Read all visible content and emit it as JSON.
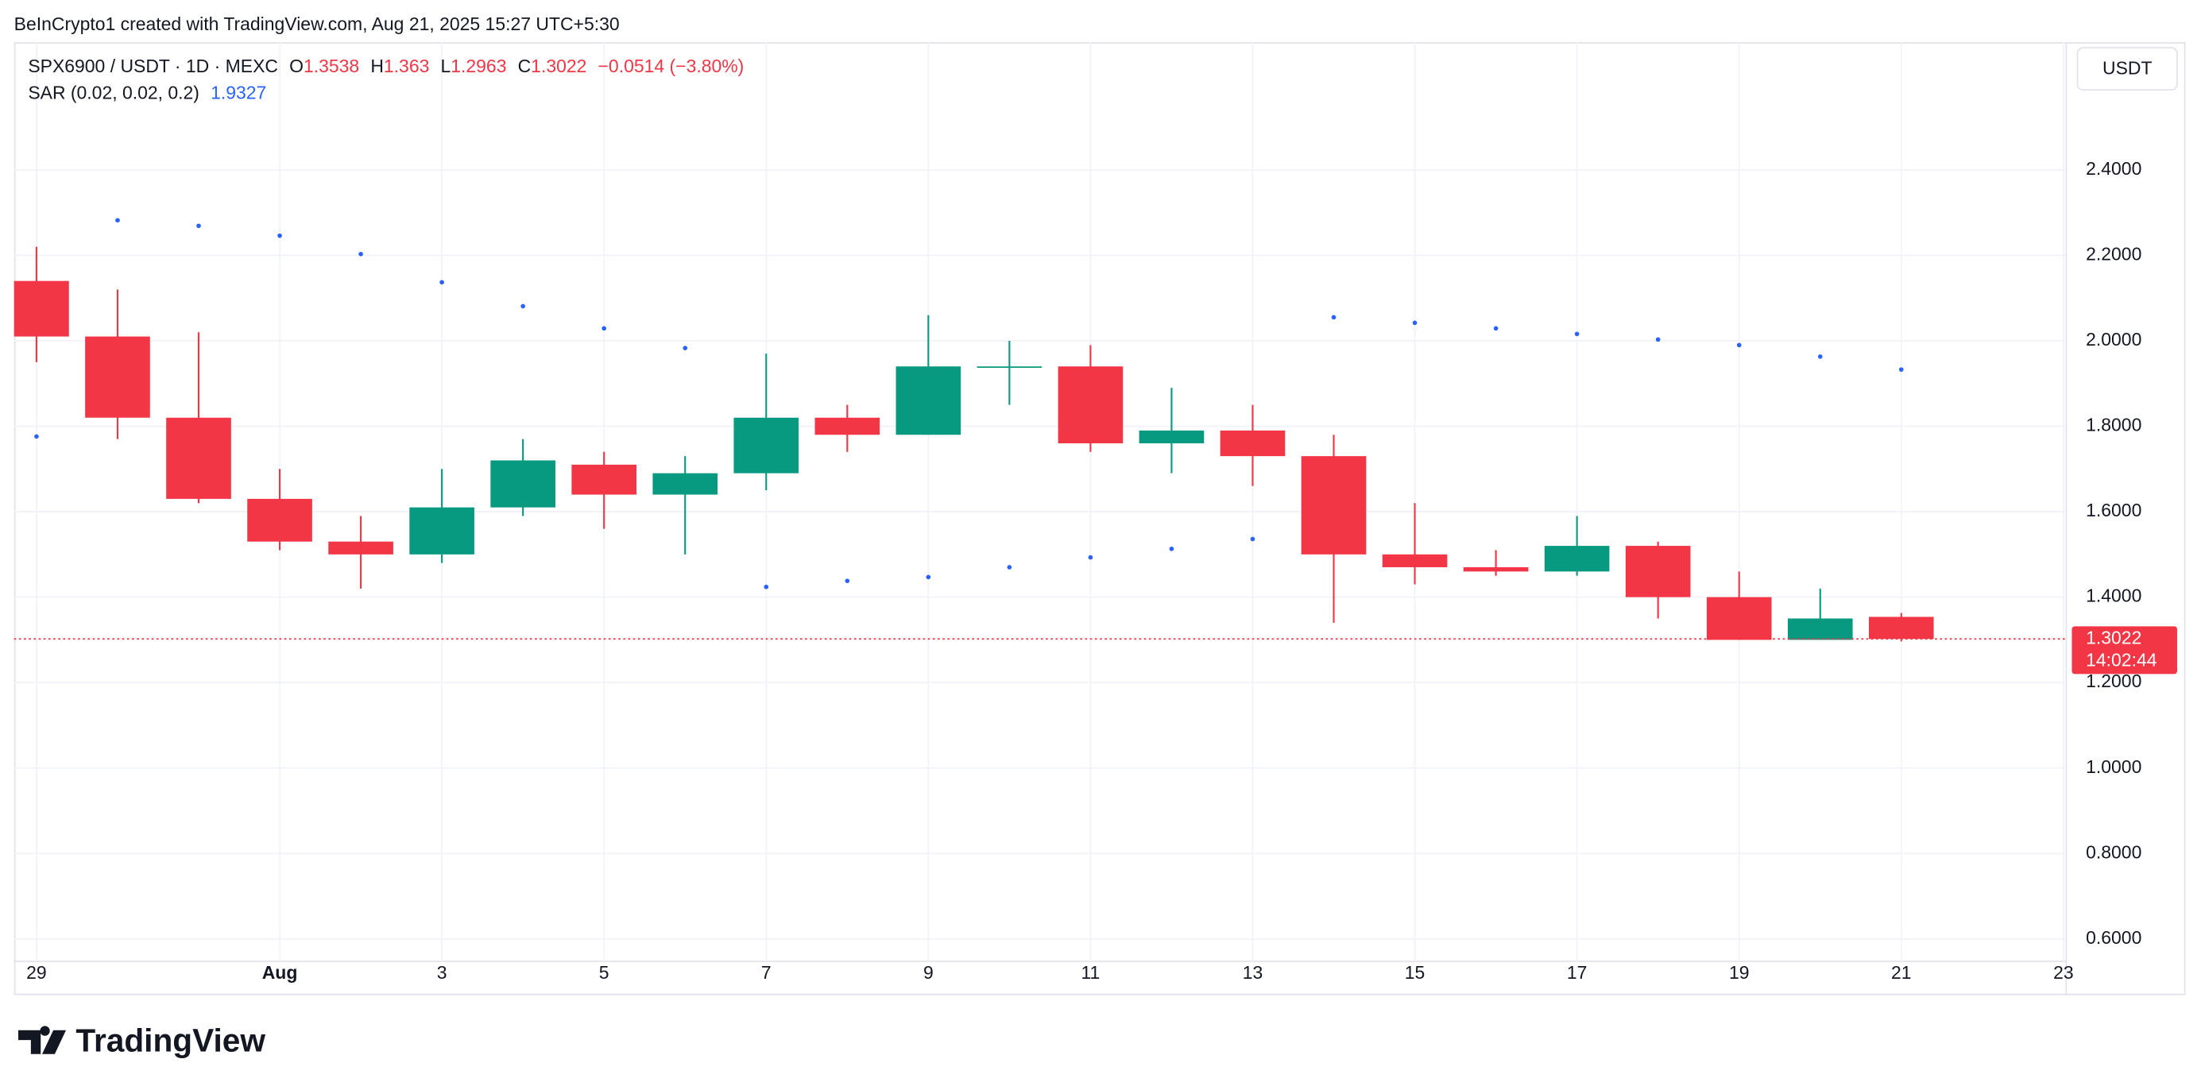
{
  "header": {
    "attribution": "BeInCrypto1 created with TradingView.com, Aug 21, 2025 15:27 UTC+5:30"
  },
  "chart_data": {
    "type": "candlestick",
    "symbol": "SPX6900 / USDT · 1D · MEXC",
    "ohlc_labels": [
      "O",
      "H",
      "L",
      "C"
    ],
    "change_label": "−0.0514 (−3.80%)",
    "x": [
      "2025-07-29",
      "2025-07-30",
      "2025-07-31",
      "2025-08-01",
      "2025-08-02",
      "2025-08-03",
      "2025-08-04",
      "2025-08-05",
      "2025-08-06",
      "2025-08-07",
      "2025-08-08",
      "2025-08-09",
      "2025-08-10",
      "2025-08-11",
      "2025-08-12",
      "2025-08-13",
      "2025-08-14",
      "2025-08-15",
      "2025-08-16",
      "2025-08-17",
      "2025-08-18",
      "2025-08-19",
      "2025-08-20",
      "2025-08-21"
    ],
    "open": [
      2.14,
      2.01,
      1.82,
      1.63,
      1.53,
      1.5,
      1.61,
      1.71,
      1.64,
      1.69,
      1.82,
      1.78,
      1.94,
      1.94,
      1.76,
      1.79,
      1.73,
      1.5,
      1.47,
      1.46,
      1.52,
      1.4,
      1.3,
      1.3538
    ],
    "high": [
      2.22,
      2.12,
      2.02,
      1.7,
      1.59,
      1.7,
      1.77,
      1.74,
      1.73,
      1.97,
      1.85,
      2.06,
      2.0,
      1.99,
      1.89,
      1.85,
      1.78,
      1.62,
      1.51,
      1.59,
      1.53,
      1.46,
      1.42,
      1.363
    ],
    "low": [
      1.95,
      1.77,
      1.62,
      1.51,
      1.42,
      1.48,
      1.59,
      1.56,
      1.5,
      1.65,
      1.74,
      1.78,
      1.85,
      1.74,
      1.69,
      1.66,
      1.34,
      1.43,
      1.45,
      1.45,
      1.35,
      1.3,
      1.3,
      1.2963
    ],
    "close": [
      2.01,
      1.82,
      1.63,
      1.53,
      1.5,
      1.61,
      1.72,
      1.64,
      1.69,
      1.82,
      1.78,
      1.94,
      1.94,
      1.76,
      1.79,
      1.73,
      1.5,
      1.47,
      1.46,
      1.52,
      1.4,
      1.3,
      1.35,
      1.3022
    ],
    "up_color": "#089981",
    "down_color": "#f23645",
    "indicator": {
      "name": "SAR (0.02, 0.02, 0.2)",
      "color": "#2962ff",
      "values": [
        1.776,
        2.282,
        2.269,
        2.246,
        2.203,
        2.137,
        2.081,
        2.029,
        1.983,
        1.424,
        1.438,
        1.447,
        1.47,
        1.493,
        1.513,
        1.536,
        2.055,
        2.042,
        2.029,
        2.016,
        2.003,
        1.99,
        1.963,
        1.9327
      ]
    },
    "xlim": [
      "2025-07-29",
      "2025-08-23"
    ],
    "xticks": [
      {
        "value": "2025-07-29",
        "label": "29"
      },
      {
        "value": "2025-08-01",
        "label": "Aug"
      },
      {
        "value": "2025-08-03",
        "label": "3"
      },
      {
        "value": "2025-08-05",
        "label": "5"
      },
      {
        "value": "2025-08-07",
        "label": "7"
      },
      {
        "value": "2025-08-09",
        "label": "9"
      },
      {
        "value": "2025-08-11",
        "label": "11"
      },
      {
        "value": "2025-08-13",
        "label": "13"
      },
      {
        "value": "2025-08-15",
        "label": "15"
      },
      {
        "value": "2025-08-17",
        "label": "17"
      },
      {
        "value": "2025-08-19",
        "label": "19"
      },
      {
        "value": "2025-08-21",
        "label": "21"
      },
      {
        "value": "2025-08-23",
        "label": "23"
      }
    ],
    "ylim": [
      0.55,
      2.7
    ],
    "yticks": [
      {
        "value": 0.6,
        "label": "0.6000"
      },
      {
        "value": 0.8,
        "label": "0.8000"
      },
      {
        "value": 1.0,
        "label": "1.0000"
      },
      {
        "value": 1.2,
        "label": "1.2000"
      },
      {
        "value": 1.4,
        "label": "1.4000"
      },
      {
        "value": 1.6,
        "label": "1.6000"
      },
      {
        "value": 1.8,
        "label": "1.8000"
      },
      {
        "value": 2.0,
        "label": "2.0000"
      },
      {
        "value": 2.2,
        "label": "2.2000"
      },
      {
        "value": 2.4,
        "label": "2.4000"
      }
    ],
    "grid": true,
    "currency": "USDT",
    "countdown": "14:02:44"
  },
  "footer": {
    "logo": "TradingView"
  }
}
